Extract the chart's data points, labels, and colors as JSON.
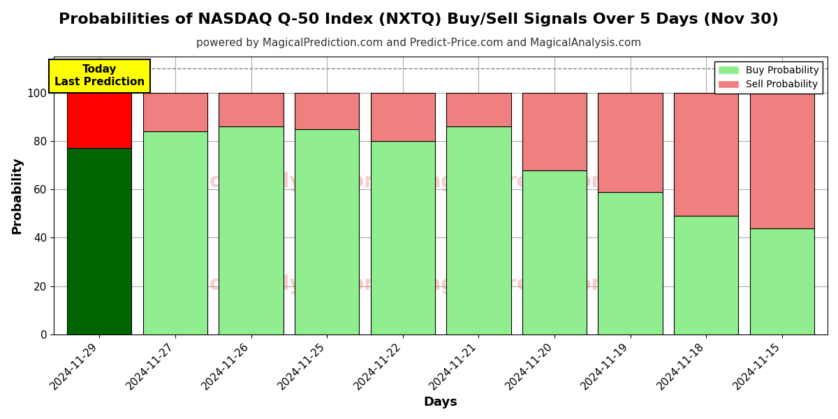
{
  "title": "Probabilities of NASDAQ Q-50 Index (NXTQ) Buy/Sell Signals Over 5 Days (Nov 30)",
  "subtitle": "powered by MagicalPrediction.com and Predict-Price.com and MagicalAnalysis.com",
  "xlabel": "Days",
  "ylabel": "Probability",
  "categories": [
    "2024-11-29",
    "2024-11-27",
    "2024-11-26",
    "2024-11-25",
    "2024-11-22",
    "2024-11-21",
    "2024-11-20",
    "2024-11-19",
    "2024-11-18",
    "2024-11-15"
  ],
  "buy_values": [
    77,
    84,
    86,
    85,
    80,
    86,
    68,
    59,
    49,
    44
  ],
  "sell_values": [
    23,
    16,
    14,
    15,
    20,
    14,
    32,
    41,
    51,
    56
  ],
  "buy_colors": [
    "#006400",
    "#90EE90",
    "#90EE90",
    "#90EE90",
    "#90EE90",
    "#90EE90",
    "#90EE90",
    "#90EE90",
    "#90EE90",
    "#90EE90"
  ],
  "sell_colors": [
    "#FF0000",
    "#F08080",
    "#F08080",
    "#F08080",
    "#F08080",
    "#F08080",
    "#F08080",
    "#F08080",
    "#F08080",
    "#F08080"
  ],
  "legend_buy_color": "#90EE90",
  "legend_sell_color": "#F08080",
  "ylim": [
    0,
    115
  ],
  "yticks": [
    0,
    20,
    40,
    60,
    80,
    100
  ],
  "dashed_line_y": 110,
  "annotation_text": "Today\nLast Prediction",
  "background_color": "#ffffff",
  "bar_edge_color": "#000000",
  "bar_width": 0.85,
  "grid_color": "#aaaaaa",
  "title_fontsize": 16,
  "subtitle_fontsize": 11,
  "axis_label_fontsize": 13,
  "tick_fontsize": 11
}
